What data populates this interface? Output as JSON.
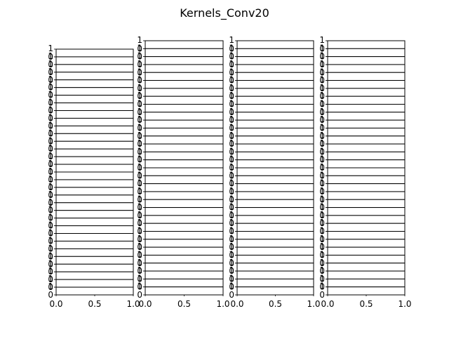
{
  "figure": {
    "title": "Kernels_Conv20"
  },
  "chart_data": {
    "type": "line",
    "title": "Kernels_Conv20",
    "description_layout": "4 columns of stacked empty subplot axes",
    "columns": [
      {
        "name": "",
        "subplot_count": 32,
        "xlim": [
          0.0,
          1.0
        ],
        "ylim": [
          0,
          1
        ],
        "xticks": [
          "0.0",
          "0.5",
          "1.0"
        ],
        "yticks": [
          "0",
          "1"
        ]
      },
      {
        "name": "",
        "subplot_count": 32,
        "xlim": [
          0.0,
          1.0
        ],
        "ylim": [
          0,
          1
        ],
        "xticks": [
          "0.0",
          "0.5",
          "1.0"
        ],
        "yticks": [
          "0",
          "1"
        ]
      },
      {
        "name": "",
        "subplot_count": 32,
        "xlim": [
          0.0,
          1.0
        ],
        "ylim": [
          0,
          1
        ],
        "xticks": [
          "0.0",
          "0.5",
          "1.0"
        ],
        "yticks": [
          "0",
          "1"
        ]
      },
      {
        "name": "",
        "subplot_count": 32,
        "xlim": [
          0.0,
          1.0
        ],
        "ylim": [
          0,
          1
        ],
        "xticks": [
          "0.0",
          "0.5",
          "1.0"
        ],
        "yticks": [
          "0",
          "1"
        ]
      }
    ],
    "grid": false
  }
}
